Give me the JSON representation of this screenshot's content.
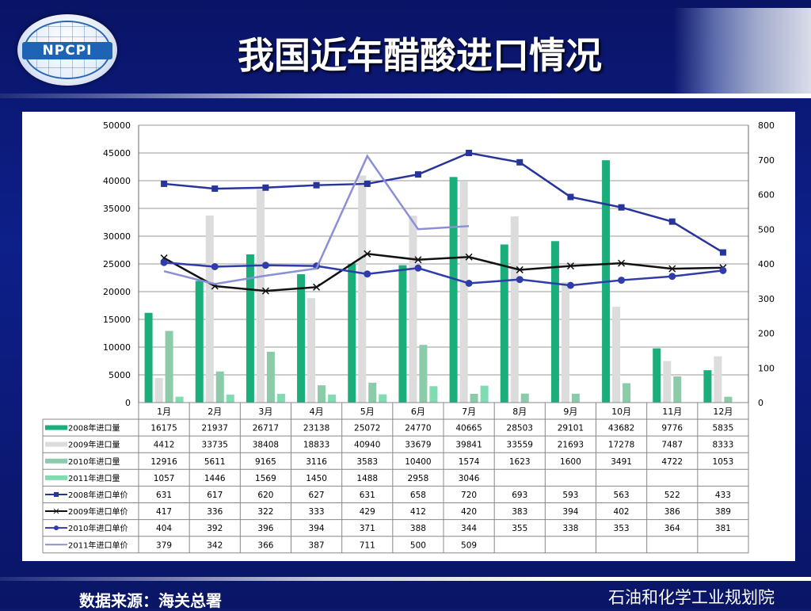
{
  "slide": {
    "title": "我国近年醋酸进口情况",
    "logo_text": "NPCPI",
    "source": "数据来源：海关总署",
    "org": "石油和化学工业规划院"
  },
  "chart_data": {
    "type": "bar",
    "categories": [
      "1月",
      "2月",
      "3月",
      "4月",
      "5月",
      "6月",
      "7月",
      "8月",
      "9月",
      "10月",
      "11月",
      "12月"
    ],
    "y_left": {
      "min": 0,
      "max": 50000,
      "ticks": [
        0,
        5000,
        10000,
        15000,
        20000,
        25000,
        30000,
        35000,
        40000,
        45000,
        50000
      ]
    },
    "y_right": {
      "min": 0,
      "max": 800,
      "ticks": [
        0,
        100,
        200,
        300,
        400,
        500,
        600,
        700,
        800
      ]
    },
    "grid": true,
    "bar_series": [
      {
        "name": "2008年进口量",
        "color": "#1aae7a",
        "values": [
          16175,
          21937,
          26717,
          23138,
          25072,
          24770,
          40665,
          28503,
          29101,
          43682,
          9776,
          5835
        ]
      },
      {
        "name": "2009年进口量",
        "color": "#dcdcdc",
        "values": [
          4412,
          33735,
          38408,
          18833,
          40940,
          33679,
          39841,
          33559,
          21693,
          17278,
          7487,
          8333
        ]
      },
      {
        "name": "2010年进口量",
        "color": "#8ccbaa",
        "values": [
          12916,
          5611,
          9165,
          3116,
          3583,
          10400,
          1574,
          1623,
          1600,
          3491,
          4722,
          1053
        ]
      },
      {
        "name": "2011年进口量",
        "color": "#7fdcb0",
        "values": [
          1057,
          1446,
          1569,
          1450,
          1488,
          2958,
          3046,
          null,
          null,
          null,
          null,
          null
        ]
      }
    ],
    "line_series": [
      {
        "name": "2008年进口单价",
        "color": "#27349a",
        "marker": "square",
        "values": [
          631,
          617,
          620,
          627,
          631,
          658,
          720,
          693,
          593,
          563,
          522,
          433
        ]
      },
      {
        "name": "2009年进口单价",
        "color": "#111111",
        "marker": "x",
        "values": [
          417,
          336,
          322,
          333,
          429,
          412,
          420,
          383,
          394,
          402,
          386,
          389
        ]
      },
      {
        "name": "2010年进口单价",
        "color": "#2f3caa",
        "marker": "circle",
        "values": [
          404,
          392,
          396,
          394,
          371,
          388,
          344,
          355,
          338,
          353,
          364,
          381
        ]
      },
      {
        "name": "2011年进口单价",
        "color": "#8a8fd6",
        "marker": "none",
        "values": [
          379,
          342,
          366,
          387,
          711,
          500,
          509,
          null,
          null,
          null,
          null,
          null
        ]
      }
    ]
  }
}
